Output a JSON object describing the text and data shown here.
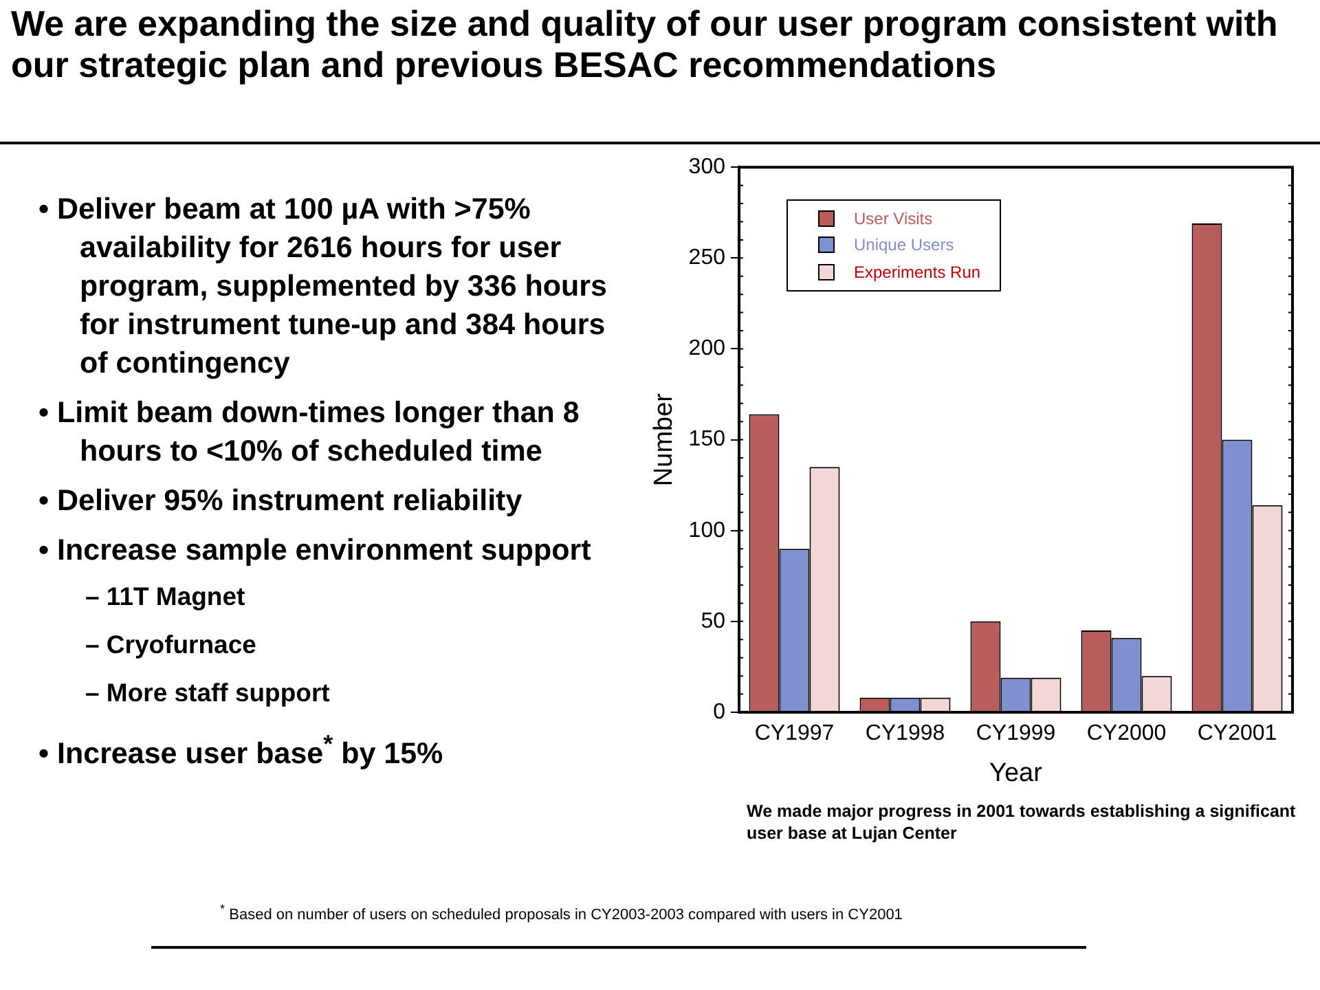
{
  "chart_data": {
    "type": "bar",
    "title": "We are expanding the size and quality of our user program consistent with our strategic plan and previous BESAC recommendations",
    "xlabel": "Year",
    "ylabel": "Number",
    "categories": [
      "CY1997",
      "CY1998",
      "CY1999",
      "CY2000",
      "CY2001"
    ],
    "series": [
      {
        "name": "User Visits",
        "color": "#b85c5c",
        "values": [
          164,
          8,
          50,
          45,
          269
        ]
      },
      {
        "name": "Unique Users",
        "color": "#7f8fd0",
        "values": [
          90,
          8,
          19,
          41,
          150
        ]
      },
      {
        "name": "Experiments Run",
        "color": "#f3d6d6",
        "values": [
          135,
          8,
          19,
          20,
          114
        ]
      }
    ],
    "ylim": [
      0,
      300
    ],
    "yticks": [
      0,
      50,
      100,
      150,
      200,
      250,
      300
    ],
    "grid": false,
    "legend": "top left",
    "annotations": [
      "• Deliver beam at 100 µA with >75% availability for 2616 hours for user program, supplemented by 336 hours for instrument tune-up and 384 hours of contingency",
      "• Limit beam down-times longer than 8 hours to <10% of scheduled time",
      "• Deliver 95% instrument reliability",
      "• Increase sample environment support",
      "– 11T Magnet",
      "– Cryofurnace",
      "– More staff support",
      "• Increase user base$^{*}$ by 15%",
      "We made major progress in 2001 towards establishing a significant user base at Lujan Center",
      "$^{*}$ Based on number of users on scheduled proposals in CY2003-2003  compared with users in CY2001"
    ]
  }
}
